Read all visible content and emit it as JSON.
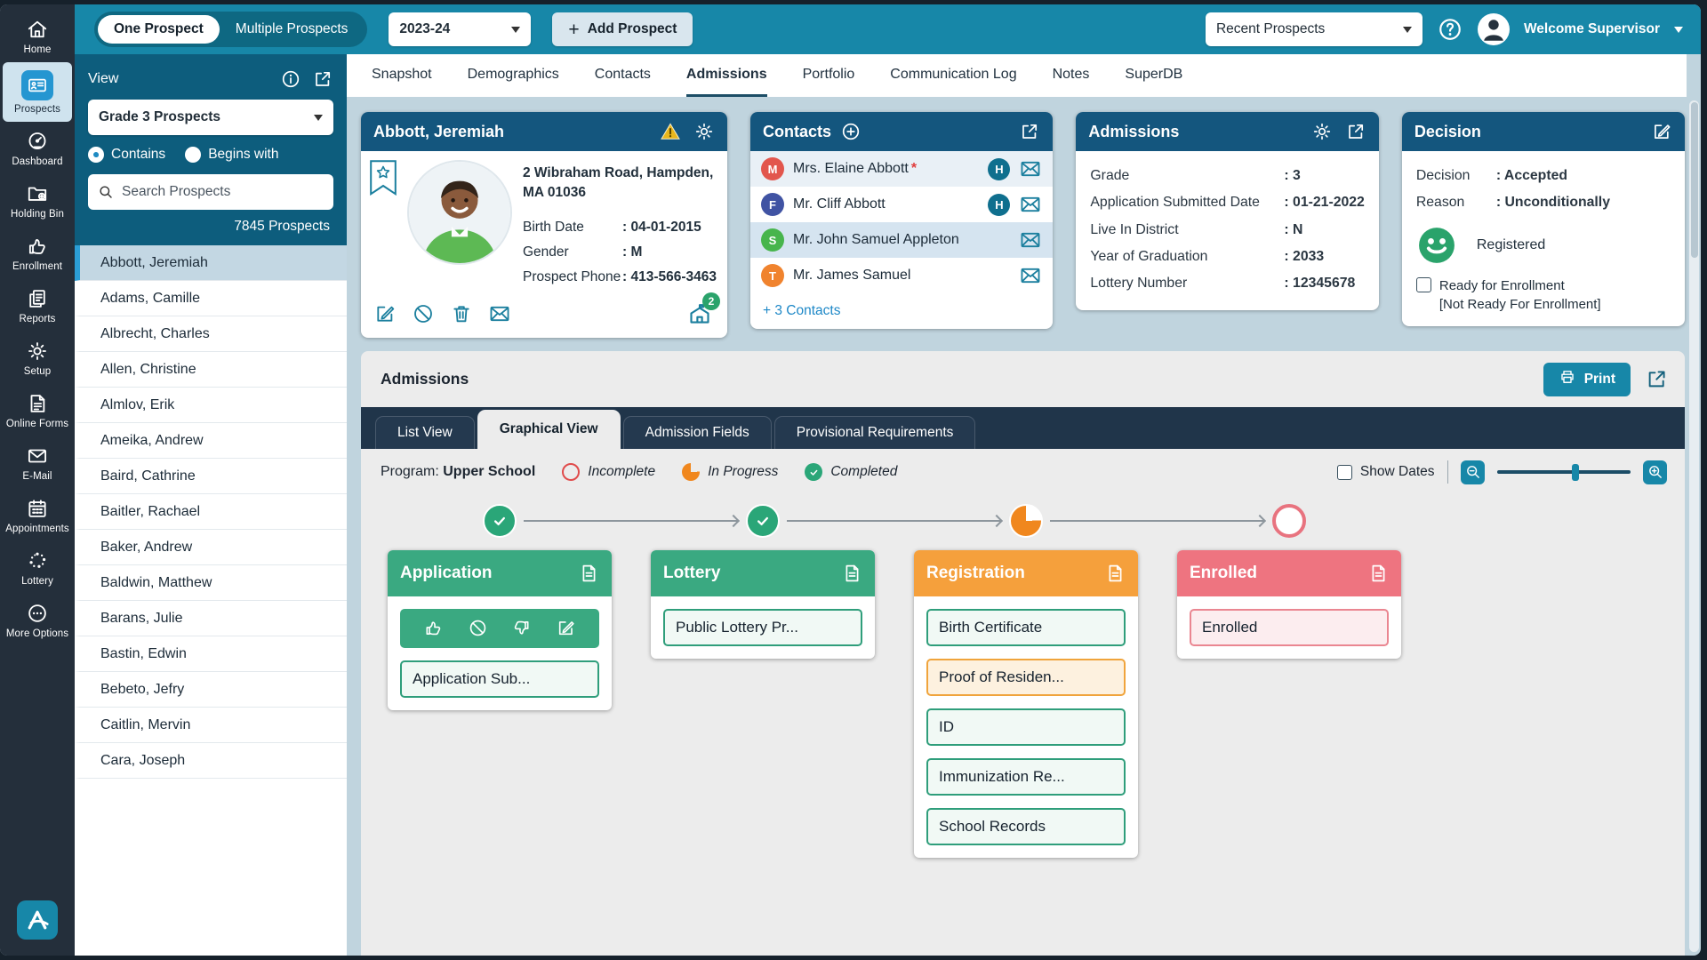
{
  "top_bar": {
    "toggle_one": "One Prospect",
    "toggle_multiple": "Multiple Prospects",
    "year": "2023-24",
    "add_prospect": "Add Prospect",
    "recent_prospects": "Recent Prospects",
    "welcome": "Welcome Supervisor"
  },
  "sidebar": {
    "active": "Prospects",
    "items": [
      {
        "label": "Home",
        "icon": "home-icon"
      },
      {
        "label": "Prospects",
        "icon": "prospects-icon"
      },
      {
        "label": "Dashboard",
        "icon": "dashboard-icon"
      },
      {
        "label": "Holding Bin",
        "icon": "holding-bin-icon"
      },
      {
        "label": "Enrollment",
        "icon": "enrollment-icon"
      },
      {
        "label": "Reports",
        "icon": "reports-icon"
      },
      {
        "label": "Setup",
        "icon": "setup-icon"
      },
      {
        "label": "Online Forms",
        "icon": "online-forms-icon"
      },
      {
        "label": "E-Mail",
        "icon": "email-icon"
      },
      {
        "label": "Appointments",
        "icon": "appointments-icon"
      },
      {
        "label": "Lottery",
        "icon": "lottery-icon"
      },
      {
        "label": "More Options",
        "icon": "more-options-icon"
      }
    ]
  },
  "panel": {
    "view_label": "View",
    "view_value": "Grade 3 Prospects",
    "radio_contains": "Contains",
    "radio_begins": "Begins with",
    "search_placeholder": "Search Prospects",
    "count": "7845 Prospects",
    "selected": "Abbott, Jeremiah",
    "names": [
      "Abbott, Jeremiah",
      "Adams, Camille",
      "Albrecht, Charles",
      "Allen, Christine",
      "Almlov, Erik",
      "Ameika, Andrew",
      "Baird, Cathrine",
      "Baitler, Rachael",
      "Baker, Andrew",
      "Baldwin, Matthew",
      "Barans, Julie",
      "Bastin, Edwin",
      "Bebeto, Jefry",
      "Caitlin, Mervin",
      "Cara, Joseph"
    ]
  },
  "tabs": {
    "active": "Admissions",
    "items": [
      "Snapshot",
      "Demographics",
      "Contacts",
      "Admissions",
      "Portfolio",
      "Communication Log",
      "Notes",
      "SuperDB"
    ]
  },
  "student": {
    "name": "Abbott, Jeremiah",
    "address_line1": "2 Wibraham Road, Hampden,",
    "address_line2": "MA 01036",
    "fields": [
      {
        "label": "Birth Date",
        "value": ": 04-01-2015"
      },
      {
        "label": "Gender",
        "value": ": M"
      },
      {
        "label": "Prospect Phone",
        "value": ": 413-566-3463"
      }
    ],
    "school_badge": "2"
  },
  "contacts": {
    "title": "Contacts",
    "rows": [
      {
        "initial": "M",
        "color": "#e2564d",
        "name": "Mrs. Elaine Abbott",
        "required": true,
        "badge": "H",
        "selected": false
      },
      {
        "initial": "F",
        "color": "#4053a3",
        "name": "Mr. Cliff Abbott",
        "required": false,
        "badge": "H",
        "selected": false
      },
      {
        "initial": "S",
        "color": "#47b54c",
        "name": "Mr. John Samuel Appleton",
        "required": false,
        "badge": "",
        "selected": true
      },
      {
        "initial": "T",
        "color": "#f0832e",
        "name": "Mr. James Samuel",
        "required": false,
        "badge": "",
        "selected": false
      }
    ],
    "more_link": "+ 3 Contacts"
  },
  "admissions_card": {
    "title": "Admissions",
    "fields": [
      {
        "label": "Grade",
        "value": ": 3"
      },
      {
        "label": "Application Submitted Date",
        "value": ": 01-21-2022"
      },
      {
        "label": "Live In District",
        "value": ": N"
      },
      {
        "label": "Year of Graduation",
        "value": ": 2033"
      },
      {
        "label": "Lottery Number",
        "value": ": 12345678"
      }
    ]
  },
  "decision_card": {
    "title": "Decision",
    "fields": [
      {
        "label": "Decision",
        "value": ": Accepted"
      },
      {
        "label": "Reason",
        "value": ": Unconditionally"
      }
    ],
    "registered": "Registered",
    "ready_line1": "Ready for Enrollment",
    "ready_line2": "[Not Ready For Enrollment]"
  },
  "section": {
    "title": "Admissions",
    "print": "Print",
    "tabs": [
      "List View",
      "Graphical View",
      "Admission Fields",
      "Provisional Requirements"
    ],
    "active_tab": "Graphical View",
    "program_label": "Program:",
    "program_value": "Upper School",
    "legend": [
      {
        "label": "Incomplete",
        "status": "incomplete"
      },
      {
        "label": "In Progress",
        "status": "in-progress"
      },
      {
        "label": "Completed",
        "status": "completed"
      }
    ],
    "show_dates": "Show Dates",
    "stages": [
      {
        "title": "Application",
        "theme": "green",
        "node": "completed",
        "action_bar": true,
        "items": [
          {
            "label": "Application Sub...",
            "status": "completed"
          }
        ]
      },
      {
        "title": "Lottery",
        "theme": "green",
        "node": "completed",
        "action_bar": false,
        "items": [
          {
            "label": "Public Lottery Pr...",
            "status": "completed"
          }
        ]
      },
      {
        "title": "Registration",
        "theme": "orange",
        "node": "in-progress",
        "action_bar": false,
        "items": [
          {
            "label": "Birth Certificate",
            "status": "completed"
          },
          {
            "label": "Proof of Residen...",
            "status": "in-progress"
          },
          {
            "label": "ID",
            "status": "completed"
          },
          {
            "label": "Immunization Re...",
            "status": "completed"
          },
          {
            "label": "School Records",
            "status": "completed"
          }
        ]
      },
      {
        "title": "Enrolled",
        "theme": "pink",
        "node": "incomplete",
        "action_bar": false,
        "items": [
          {
            "label": "Enrolled",
            "status": "incomplete"
          }
        ]
      }
    ]
  },
  "colors": {
    "topbar_teal": "#1787a8",
    "panel_teal": "#0d5d7d",
    "card_header_blue": "#14567e",
    "tabbar_navy": "#20354a",
    "sidebar_dark": "#242f3b",
    "active_blue": "#2596d1",
    "selected_row": "#c3d7e3",
    "main_bg": "#c0d4de",
    "green": "#3aa981",
    "green_deep": "#2aa678",
    "orange": "#f5a03c",
    "orange_deep": "#f0871e",
    "pink": "#ee7480",
    "pink_ring": "#e8737f",
    "incomplete_red": "#e04b4b",
    "icon_teal": "#1b7f9e",
    "link_blue": "#1e88c7"
  }
}
